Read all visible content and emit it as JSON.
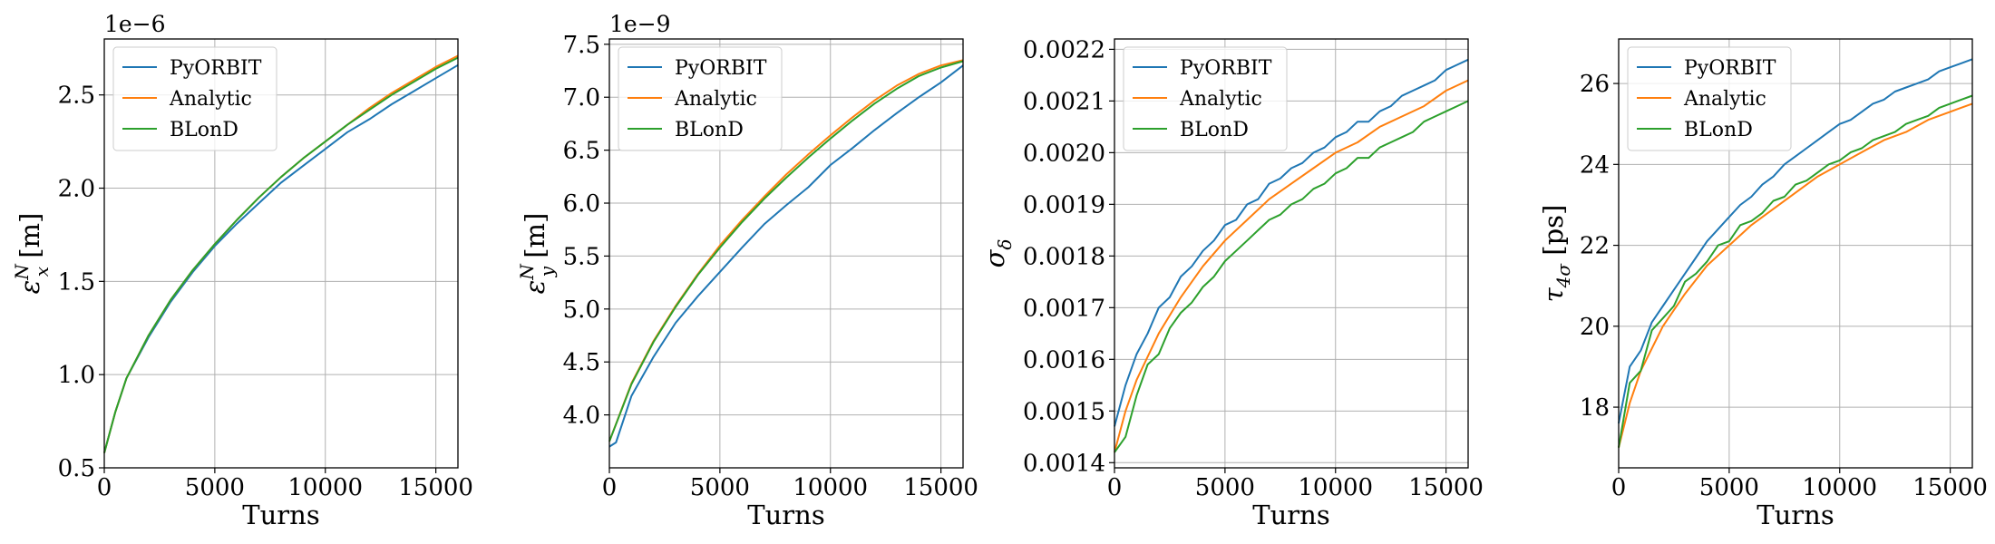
{
  "chart_data": [
    {
      "type": "line",
      "xlabel": "Turns",
      "ylabel_main": "ε",
      "ylabel_sup": "N",
      "ylabel_sub": "x",
      "ylabel_unit": " [m]",
      "offset_text": "1e−6",
      "xlim": [
        0,
        16000
      ],
      "ylim": [
        0.5,
        2.8
      ],
      "xticks": [
        0,
        5000,
        10000,
        15000
      ],
      "yticks": [
        0.5,
        1.0,
        1.5,
        2.0,
        2.5
      ],
      "ytick_labels": [
        "0.5",
        "1.0",
        "1.5",
        "2.0",
        "2.5"
      ],
      "grid": true,
      "legend_position": "top-left",
      "series": [
        {
          "name": "PyORBIT",
          "color": "#1f77b4",
          "x": [
            0,
            500,
            1000,
            2000,
            3000,
            4000,
            5000,
            6000,
            7000,
            8000,
            9000,
            10000,
            11000,
            12000,
            13000,
            14000,
            15000,
            16000
          ],
          "y": [
            0.58,
            0.8,
            0.98,
            1.2,
            1.39,
            1.55,
            1.69,
            1.81,
            1.92,
            2.03,
            2.12,
            2.21,
            2.3,
            2.37,
            2.45,
            2.52,
            2.59,
            2.66
          ]
        },
        {
          "name": "Analytic",
          "color": "#ff7f0e",
          "x": [
            0,
            500,
            1000,
            2000,
            3000,
            4000,
            5000,
            6000,
            7000,
            8000,
            9000,
            10000,
            11000,
            12000,
            13000,
            14000,
            15000,
            16000
          ],
          "y": [
            0.58,
            0.8,
            0.98,
            1.21,
            1.4,
            1.56,
            1.7,
            1.83,
            1.95,
            2.06,
            2.16,
            2.25,
            2.34,
            2.43,
            2.51,
            2.58,
            2.65,
            2.71
          ]
        },
        {
          "name": "BLonD",
          "color": "#2ca02c",
          "x": [
            0,
            500,
            1000,
            2000,
            3000,
            4000,
            5000,
            6000,
            7000,
            8000,
            9000,
            10000,
            11000,
            12000,
            13000,
            14000,
            15000,
            16000
          ],
          "y": [
            0.58,
            0.8,
            0.98,
            1.21,
            1.4,
            1.56,
            1.7,
            1.83,
            1.95,
            2.06,
            2.16,
            2.25,
            2.34,
            2.42,
            2.5,
            2.57,
            2.64,
            2.7
          ]
        }
      ]
    },
    {
      "type": "line",
      "xlabel": "Turns",
      "ylabel_main": "ε",
      "ylabel_sup": "N",
      "ylabel_sub": "y",
      "ylabel_unit": " [m]",
      "offset_text": "1e−9",
      "xlim": [
        0,
        16000
      ],
      "ylim": [
        3.5,
        7.55
      ],
      "xticks": [
        0,
        5000,
        10000,
        15000
      ],
      "yticks": [
        4.0,
        4.5,
        5.0,
        5.5,
        6.0,
        6.5,
        7.0,
        7.5
      ],
      "ytick_labels": [
        "4.0",
        "4.5",
        "5.0",
        "5.5",
        "6.0",
        "6.5",
        "7.0",
        "7.5"
      ],
      "grid": true,
      "legend_position": "top-left",
      "series": [
        {
          "name": "PyORBIT",
          "color": "#1f77b4",
          "x": [
            0,
            300,
            1000,
            2000,
            3000,
            4000,
            5000,
            6000,
            7000,
            8000,
            9000,
            10000,
            11000,
            12000,
            13000,
            14000,
            15000,
            16000
          ],
          "y": [
            3.7,
            3.74,
            4.18,
            4.55,
            4.87,
            5.12,
            5.35,
            5.58,
            5.8,
            5.98,
            6.15,
            6.36,
            6.52,
            6.69,
            6.85,
            7.0,
            7.14,
            7.3
          ]
        },
        {
          "name": "Analytic",
          "color": "#ff7f0e",
          "x": [
            0,
            1000,
            2000,
            3000,
            4000,
            5000,
            6000,
            7000,
            8000,
            9000,
            10000,
            11000,
            12000,
            13000,
            14000,
            15000,
            16000
          ],
          "y": [
            3.75,
            4.3,
            4.7,
            5.03,
            5.33,
            5.6,
            5.84,
            6.06,
            6.27,
            6.46,
            6.64,
            6.81,
            6.97,
            7.11,
            7.22,
            7.3,
            7.35
          ]
        },
        {
          "name": "BLonD",
          "color": "#2ca02c",
          "x": [
            0,
            1000,
            2000,
            3000,
            4000,
            5000,
            6000,
            7000,
            8000,
            9000,
            10000,
            11000,
            12000,
            13000,
            14000,
            15000,
            16000
          ],
          "y": [
            3.75,
            4.29,
            4.69,
            5.02,
            5.32,
            5.58,
            5.82,
            6.04,
            6.24,
            6.43,
            6.61,
            6.78,
            6.94,
            7.08,
            7.2,
            7.28,
            7.34
          ]
        }
      ]
    },
    {
      "type": "line",
      "xlabel": "Turns",
      "ylabel_main": "σ",
      "ylabel_sup": "",
      "ylabel_sub": "δ",
      "ylabel_unit": "",
      "offset_text": "",
      "xlim": [
        0,
        16000
      ],
      "ylim": [
        0.00139,
        0.00222
      ],
      "xticks": [
        0,
        5000,
        10000,
        15000
      ],
      "yticks": [
        0.0014,
        0.0015,
        0.0016,
        0.0017,
        0.0018,
        0.0019,
        0.002,
        0.0021,
        0.0022
      ],
      "ytick_labels": [
        "0.0014",
        "0.0015",
        "0.0016",
        "0.0017",
        "0.0018",
        "0.0019",
        "0.0020",
        "0.0021",
        "0.0022"
      ],
      "grid": true,
      "legend_position": "top-left",
      "series": [
        {
          "name": "PyORBIT",
          "color": "#1f77b4",
          "x": [
            0,
            500,
            1000,
            1500,
            2000,
            2500,
            3000,
            3500,
            4000,
            4500,
            5000,
            5500,
            6000,
            6500,
            7000,
            7500,
            8000,
            8500,
            9000,
            9500,
            10000,
            10500,
            11000,
            11500,
            12000,
            12500,
            13000,
            13500,
            14000,
            14500,
            15000,
            15500,
            16000
          ],
          "y": [
            0.00147,
            0.00155,
            0.00161,
            0.00165,
            0.0017,
            0.00172,
            0.00176,
            0.00178,
            0.00181,
            0.00183,
            0.00186,
            0.00187,
            0.0019,
            0.00191,
            0.00194,
            0.00195,
            0.00197,
            0.00198,
            0.002,
            0.00201,
            0.00203,
            0.00204,
            0.00206,
            0.00206,
            0.00208,
            0.00209,
            0.00211,
            0.00212,
            0.00213,
            0.00214,
            0.00216,
            0.00217,
            0.00218
          ]
        },
        {
          "name": "Analytic",
          "color": "#ff7f0e",
          "x": [
            0,
            500,
            1000,
            2000,
            3000,
            4000,
            5000,
            6000,
            7000,
            8000,
            9000,
            10000,
            11000,
            12000,
            13000,
            14000,
            15000,
            16000
          ],
          "y": [
            0.00142,
            0.0015,
            0.00156,
            0.00165,
            0.00172,
            0.00178,
            0.00183,
            0.00187,
            0.00191,
            0.00194,
            0.00197,
            0.002,
            0.00202,
            0.00205,
            0.00207,
            0.00209,
            0.00212,
            0.00214
          ]
        },
        {
          "name": "BLonD",
          "color": "#2ca02c",
          "x": [
            0,
            500,
            1000,
            1500,
            2000,
            2500,
            3000,
            3500,
            4000,
            4500,
            5000,
            5500,
            6000,
            6500,
            7000,
            7500,
            8000,
            8500,
            9000,
            9500,
            10000,
            10500,
            11000,
            11500,
            12000,
            12500,
            13000,
            13500,
            14000,
            14500,
            15000,
            15500,
            16000
          ],
          "y": [
            0.00142,
            0.00145,
            0.00153,
            0.00159,
            0.00161,
            0.00166,
            0.00169,
            0.00171,
            0.00174,
            0.00176,
            0.00179,
            0.00181,
            0.00183,
            0.00185,
            0.00187,
            0.00188,
            0.0019,
            0.00191,
            0.00193,
            0.00194,
            0.00196,
            0.00197,
            0.00199,
            0.00199,
            0.00201,
            0.00202,
            0.00203,
            0.00204,
            0.00206,
            0.00207,
            0.00208,
            0.00209,
            0.0021
          ]
        }
      ]
    },
    {
      "type": "line",
      "xlabel": "Turns",
      "ylabel_main": "τ",
      "ylabel_sup": "",
      "ylabel_sub": "4σ",
      "ylabel_unit": " [ps]",
      "offset_text": "",
      "xlim": [
        0,
        16000
      ],
      "ylim": [
        16.5,
        27.1
      ],
      "xticks": [
        0,
        5000,
        10000,
        15000
      ],
      "yticks": [
        18,
        20,
        22,
        24,
        26
      ],
      "ytick_labels": [
        "18",
        "20",
        "22",
        "24",
        "26"
      ],
      "grid": true,
      "legend_position": "top-left",
      "series": [
        {
          "name": "PyORBIT",
          "color": "#1f77b4",
          "x": [
            0,
            500,
            1000,
            1500,
            2000,
            2500,
            3000,
            3500,
            4000,
            4500,
            5000,
            5500,
            6000,
            6500,
            7000,
            7500,
            8000,
            8500,
            9000,
            9500,
            10000,
            10500,
            11000,
            11500,
            12000,
            12500,
            13000,
            13500,
            14000,
            14500,
            15000,
            15500,
            16000
          ],
          "y": [
            17.6,
            19.0,
            19.4,
            20.1,
            20.5,
            20.9,
            21.3,
            21.7,
            22.1,
            22.4,
            22.7,
            23.0,
            23.2,
            23.5,
            23.7,
            24.0,
            24.2,
            24.4,
            24.6,
            24.8,
            25.0,
            25.1,
            25.3,
            25.5,
            25.6,
            25.8,
            25.9,
            26.0,
            26.1,
            26.3,
            26.4,
            26.5,
            26.6
          ]
        },
        {
          "name": "Analytic",
          "color": "#ff7f0e",
          "x": [
            0,
            500,
            1000,
            2000,
            3000,
            4000,
            5000,
            6000,
            7000,
            8000,
            9000,
            10000,
            11000,
            12000,
            13000,
            14000,
            15000,
            16000
          ],
          "y": [
            17.0,
            18.1,
            18.9,
            20.0,
            20.8,
            21.5,
            22.0,
            22.5,
            22.9,
            23.3,
            23.7,
            24.0,
            24.3,
            24.6,
            24.8,
            25.1,
            25.3,
            25.5
          ]
        },
        {
          "name": "BLonD",
          "color": "#2ca02c",
          "x": [
            0,
            500,
            1000,
            1500,
            2000,
            2500,
            3000,
            3500,
            4000,
            4500,
            5000,
            5500,
            6000,
            6500,
            7000,
            7500,
            8000,
            8500,
            9000,
            9500,
            10000,
            10500,
            11000,
            11500,
            12000,
            12500,
            13000,
            13500,
            14000,
            14500,
            15000,
            15500,
            16000
          ],
          "y": [
            17.0,
            18.6,
            18.9,
            19.9,
            20.2,
            20.5,
            21.1,
            21.3,
            21.6,
            22.0,
            22.1,
            22.5,
            22.6,
            22.8,
            23.1,
            23.2,
            23.5,
            23.6,
            23.8,
            24.0,
            24.1,
            24.3,
            24.4,
            24.6,
            24.7,
            24.8,
            25.0,
            25.1,
            25.2,
            25.4,
            25.5,
            25.6,
            25.7
          ]
        }
      ]
    }
  ]
}
